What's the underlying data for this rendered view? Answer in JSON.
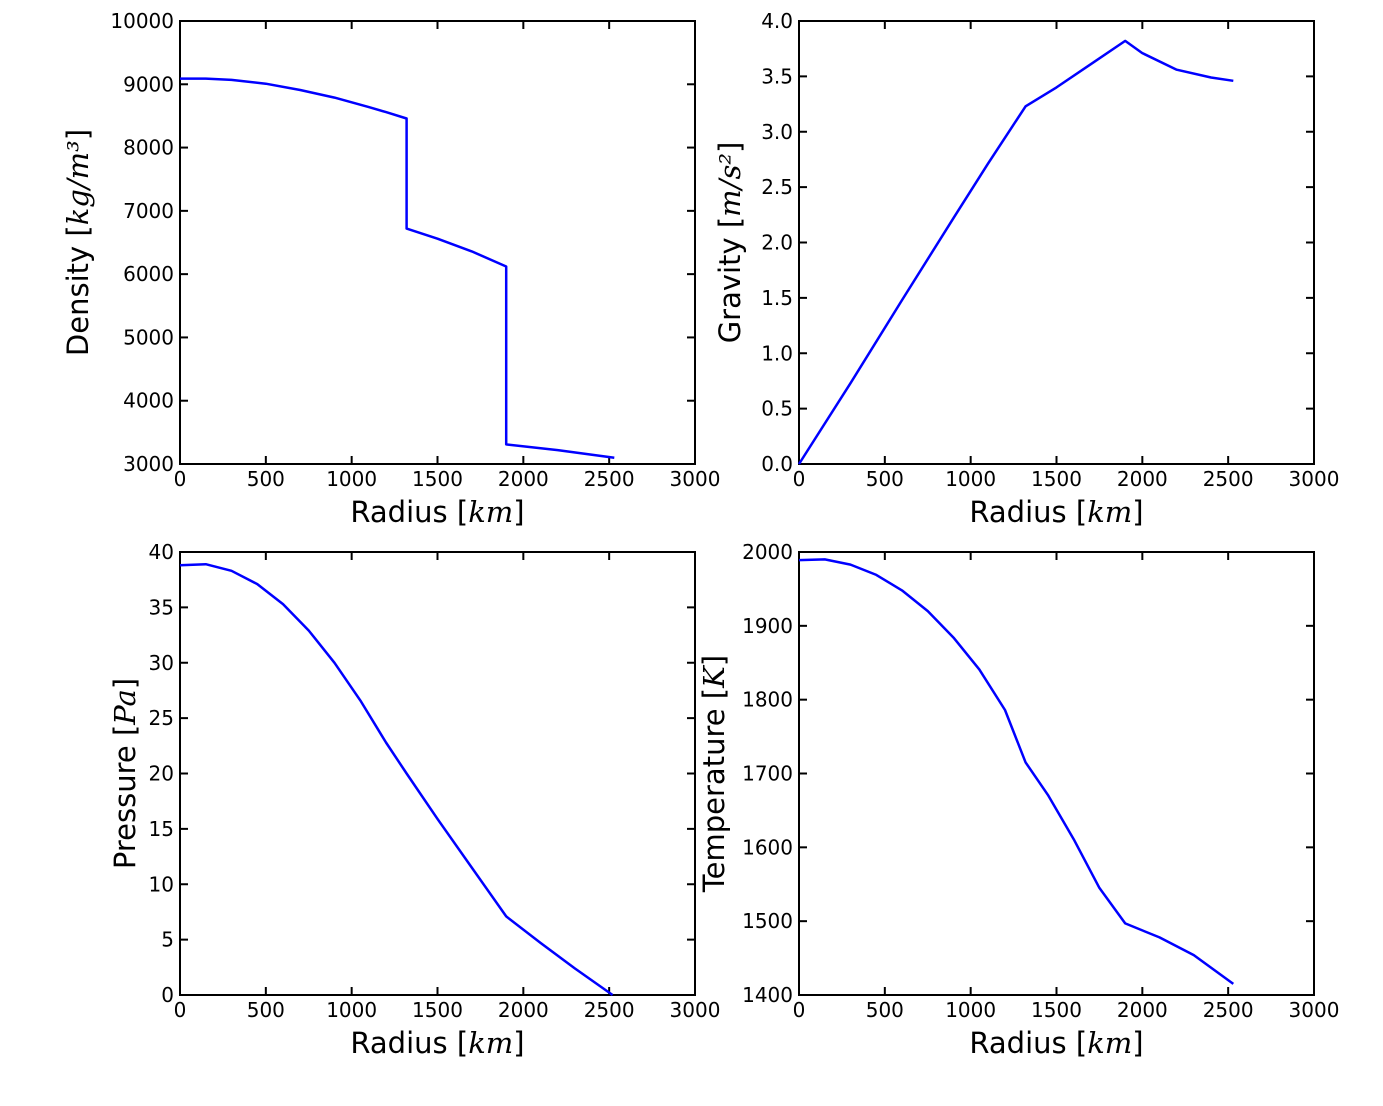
{
  "chart_data": [
    {
      "type": "line",
      "xlabel": "Radius",
      "xunit": "km",
      "ylabel": "Density",
      "yunit": "kg/m³",
      "xlim": [
        0,
        3000
      ],
      "ylim": [
        3000,
        10000
      ],
      "xticks": [
        0,
        500,
        1000,
        1500,
        2000,
        2500,
        3000
      ],
      "yticks": [
        3000,
        4000,
        5000,
        6000,
        7000,
        8000,
        9000,
        10000
      ],
      "grid": false,
      "color": "#0000ff",
      "series": [
        {
          "x": [
            0,
            150,
            300,
            500,
            700,
            900,
            1100,
            1200,
            1320,
            1320,
            1500,
            1700,
            1900,
            1900,
            2200,
            2530
          ],
          "y": [
            9090,
            9090,
            9070,
            9010,
            8910,
            8790,
            8640,
            8560,
            8460,
            6720,
            6560,
            6360,
            6120,
            3310,
            3220,
            3100
          ]
        }
      ]
    },
    {
      "type": "line",
      "xlabel": "Radius",
      "xunit": "km",
      "ylabel": "Gravity",
      "yunit": "m/s²",
      "xlim": [
        0,
        3000
      ],
      "ylim": [
        0,
        4.0
      ],
      "xticks": [
        0,
        500,
        1000,
        1500,
        2000,
        2500,
        3000
      ],
      "yticks": [
        "0.0",
        "0.5",
        "1.0",
        "1.5",
        "2.0",
        "2.5",
        "3.0",
        "3.5",
        "4.0"
      ],
      "grid": false,
      "color": "#0000ff",
      "series": [
        {
          "x": [
            0,
            300,
            600,
            900,
            1100,
            1320,
            1500,
            1700,
            1900,
            2000,
            2200,
            2400,
            2530
          ],
          "y": [
            0,
            0.73,
            1.48,
            2.22,
            2.71,
            3.23,
            3.4,
            3.61,
            3.82,
            3.71,
            3.56,
            3.49,
            3.46
          ]
        }
      ]
    },
    {
      "type": "line",
      "xlabel": "Radius",
      "xunit": "km",
      "ylabel": "Pressure",
      "yunit": "Pa",
      "xlim": [
        0,
        3000
      ],
      "ylim": [
        0,
        40
      ],
      "xticks": [
        0,
        500,
        1000,
        1500,
        2000,
        2500,
        3000
      ],
      "yticks": [
        0,
        5,
        10,
        15,
        20,
        25,
        30,
        35,
        40
      ],
      "grid": false,
      "color": "#0000ff",
      "series": [
        {
          "x": [
            0,
            150,
            300,
            450,
            600,
            750,
            900,
            1050,
            1200,
            1320,
            1500,
            1700,
            1900,
            2100,
            2300,
            2520
          ],
          "y": [
            38.8,
            38.9,
            38.3,
            37.1,
            35.3,
            32.9,
            30.0,
            26.6,
            22.8,
            20.0,
            15.9,
            11.5,
            7.1,
            4.7,
            2.4,
            0
          ]
        }
      ]
    },
    {
      "type": "line",
      "xlabel": "Radius",
      "xunit": "km",
      "ylabel": "Temperature",
      "yunit": "K",
      "xlim": [
        0,
        3000
      ],
      "ylim": [
        1400,
        2000
      ],
      "xticks": [
        0,
        500,
        1000,
        1500,
        2000,
        2500,
        3000
      ],
      "yticks": [
        1400,
        1500,
        1600,
        1700,
        1800,
        1900,
        2000
      ],
      "grid": false,
      "color": "#0000ff",
      "series": [
        {
          "x": [
            0,
            150,
            300,
            450,
            600,
            750,
            900,
            1050,
            1200,
            1320,
            1450,
            1600,
            1750,
            1900,
            2100,
            2300,
            2530
          ],
          "y": [
            1989,
            1990,
            1983,
            1969,
            1948,
            1920,
            1884,
            1841,
            1786,
            1715,
            1671,
            1611,
            1545,
            1497,
            1478,
            1454,
            1415
          ]
        }
      ]
    }
  ]
}
